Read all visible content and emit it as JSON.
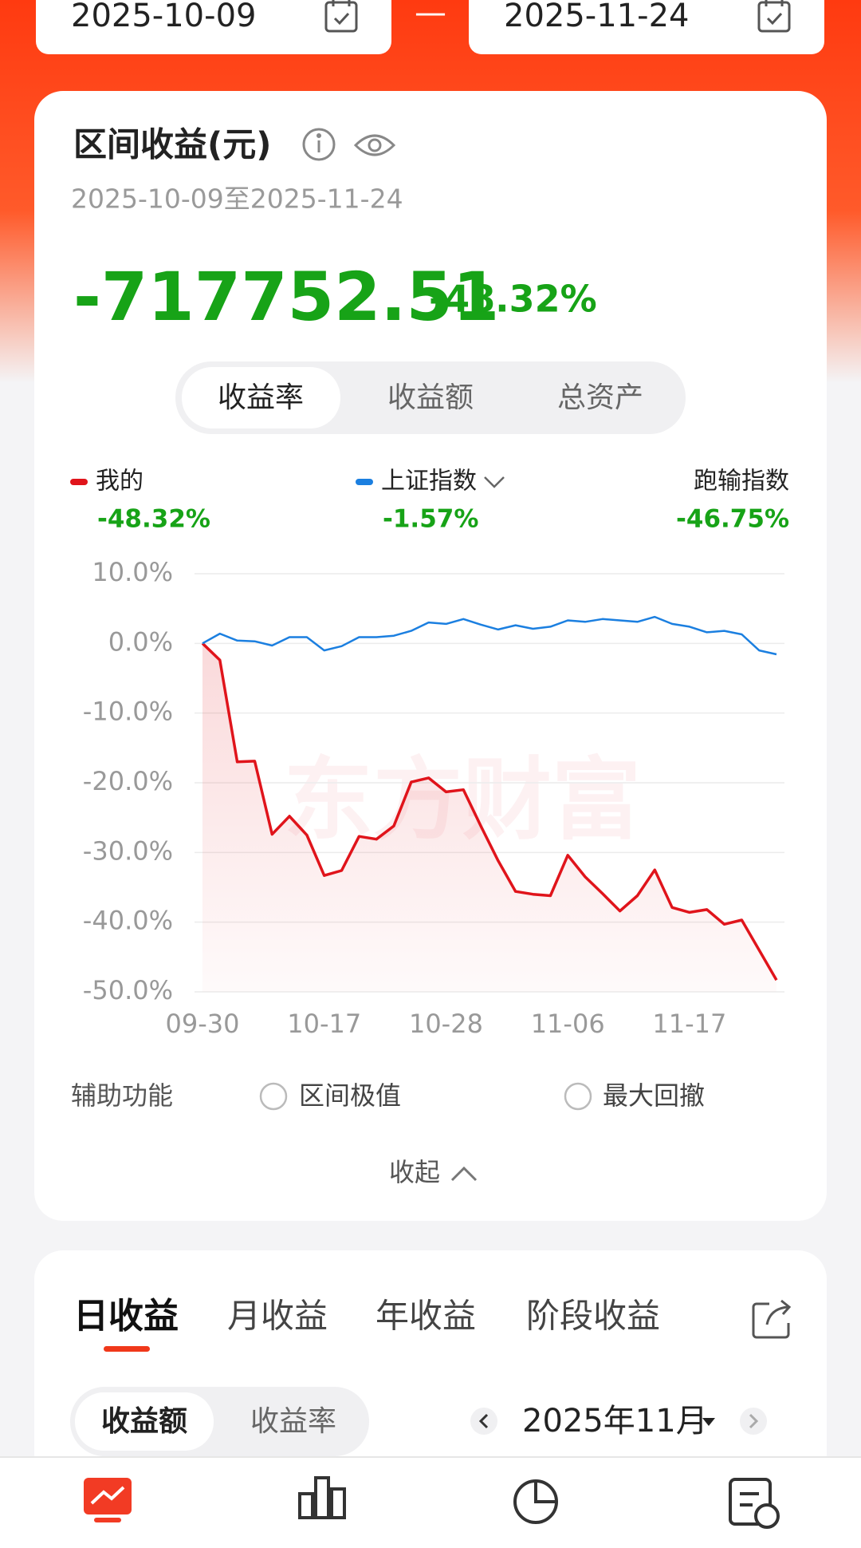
{
  "date_picker": {
    "start": "2025-10-09",
    "separator": "—",
    "end": "2025-11-24"
  },
  "summary": {
    "title": "区间收益(元)",
    "period": "2025-10-09至2025-11-24",
    "amount": "-717752.51",
    "rate": "-48.32%",
    "tabs": [
      "收益率",
      "收益额",
      "总资产"
    ]
  },
  "chart_data": {
    "type": "line",
    "watermark": "东方财富",
    "categories": [
      "09-30",
      null,
      null,
      null,
      null,
      null,
      null,
      "10-17",
      null,
      null,
      null,
      null,
      null,
      null,
      "10-28",
      null,
      null,
      null,
      null,
      null,
      null,
      "11-06",
      null,
      null,
      null,
      null,
      null,
      null,
      "11-17",
      null,
      null,
      null,
      null,
      null
    ],
    "series": [
      {
        "name": "我的",
        "summary": "-48.32%",
        "color": "#e0141b",
        "values": [
          0,
          -2.4,
          -17.0,
          -16.9,
          -27.4,
          -24.8,
          -27.5,
          -33.3,
          -32.6,
          -27.7,
          -28.1,
          -26.2,
          -19.9,
          -19.3,
          -21.3,
          -21.0,
          -26.2,
          -31.2,
          -35.6,
          -36.0,
          -36.2,
          -30.4,
          -33.5,
          -35.9,
          -38.4,
          -36.2,
          -32.5,
          -37.9,
          -38.6,
          -38.2,
          -40.3,
          -39.7,
          -44.0,
          -48.32
        ]
      },
      {
        "name": "上证指数",
        "summary": "-1.57%",
        "color": "#1b7fe0",
        "values": [
          0,
          1.4,
          0.4,
          0.3,
          -0.3,
          0.9,
          0.9,
          -1.0,
          -0.4,
          0.9,
          0.9,
          1.1,
          1.8,
          3.0,
          2.8,
          3.5,
          2.7,
          2.0,
          2.6,
          2.1,
          2.4,
          3.3,
          3.1,
          3.5,
          3.3,
          3.1,
          3.8,
          2.8,
          2.4,
          1.6,
          1.8,
          1.3,
          -1.0,
          -1.57
        ]
      }
    ],
    "underperform": {
      "name": "跑输指数",
      "value": "-46.75%"
    },
    "ylim": [
      -50,
      10
    ],
    "yticks": [
      {
        "value": 10,
        "label": "10.0%"
      },
      {
        "value": 0,
        "label": "0.0%"
      },
      {
        "value": -10,
        "label": "-10.0%"
      },
      {
        "value": -20,
        "label": "-20.0%"
      },
      {
        "value": -30,
        "label": "-30.0%"
      },
      {
        "value": -40,
        "label": "-40.0%"
      },
      {
        "value": -50,
        "label": "-50.0%"
      }
    ],
    "grid": true
  },
  "tools": {
    "label": "辅助功能",
    "options": [
      "区间极值",
      "最大回撤"
    ],
    "collapse": "收起"
  },
  "earnings": {
    "tabs": [
      "日收益",
      "月收益",
      "年收益",
      "阶段收益"
    ],
    "toggle": [
      "收益额",
      "收益率"
    ],
    "month": "2025年11月"
  }
}
